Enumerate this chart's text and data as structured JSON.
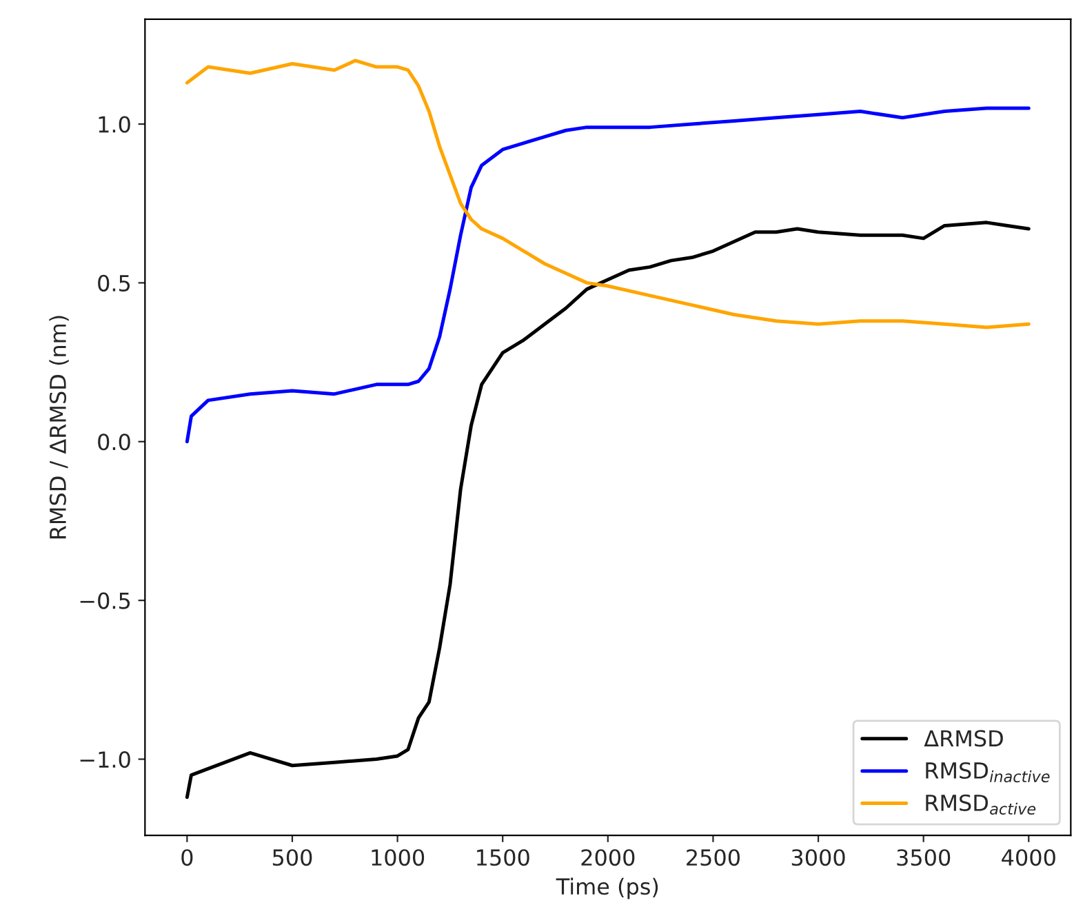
{
  "chart_data": {
    "type": "line",
    "xlabel": "Time (ps)",
    "ylabel": "RMSD / ΔRMSD (nm)",
    "xlim": [
      -200,
      4200
    ],
    "ylim": [
      -1.24,
      1.33
    ],
    "xticks": [
      0,
      500,
      1000,
      1500,
      2000,
      2500,
      3000,
      3500,
      4000
    ],
    "yticks": [
      {
        "value": -1.0,
        "label": "−1.0"
      },
      {
        "value": -0.5,
        "label": "−0.5"
      },
      {
        "value": 0.0,
        "label": "0.0"
      },
      {
        "value": 0.5,
        "label": "0.5"
      },
      {
        "value": 1.0,
        "label": "1.0"
      }
    ],
    "grid": false,
    "legend": "bottom right",
    "line_style": "solid",
    "marker": "none",
    "series": [
      {
        "name": "ΔRMSD",
        "color": "#000000",
        "x": [
          0,
          20,
          100,
          300,
          500,
          700,
          900,
          1000,
          1050,
          1100,
          1150,
          1200,
          1250,
          1300,
          1350,
          1400,
          1500,
          1600,
          1700,
          1800,
          1900,
          2000,
          2100,
          2200,
          2300,
          2400,
          2500,
          2600,
          2700,
          2800,
          2900,
          3000,
          3200,
          3400,
          3500,
          3600,
          3800,
          3900,
          4000
        ],
        "values": [
          -1.12,
          -1.05,
          -1.03,
          -0.98,
          -1.02,
          -1.01,
          -1.0,
          -0.99,
          -0.97,
          -0.87,
          -0.82,
          -0.65,
          -0.45,
          -0.15,
          0.05,
          0.18,
          0.28,
          0.32,
          0.37,
          0.42,
          0.48,
          0.51,
          0.54,
          0.55,
          0.57,
          0.58,
          0.6,
          0.63,
          0.66,
          0.66,
          0.67,
          0.66,
          0.65,
          0.65,
          0.64,
          0.68,
          0.69,
          0.68,
          0.67
        ]
      },
      {
        "name": "RMSD$_{inactive}$",
        "color": "#0000ff",
        "x": [
          0,
          20,
          100,
          300,
          500,
          700,
          900,
          1000,
          1050,
          1100,
          1150,
          1200,
          1250,
          1300,
          1350,
          1400,
          1500,
          1600,
          1700,
          1800,
          1900,
          2000,
          2200,
          2400,
          2600,
          2800,
          3000,
          3200,
          3400,
          3600,
          3800,
          4000
        ],
        "values": [
          0.0,
          0.08,
          0.13,
          0.15,
          0.16,
          0.15,
          0.18,
          0.18,
          0.18,
          0.19,
          0.23,
          0.33,
          0.48,
          0.65,
          0.8,
          0.87,
          0.92,
          0.94,
          0.96,
          0.98,
          0.99,
          0.99,
          0.99,
          1.0,
          1.01,
          1.02,
          1.03,
          1.04,
          1.02,
          1.04,
          1.05,
          1.05
        ]
      },
      {
        "name": "RMSD$_{active}$",
        "color": "#ffa500",
        "x": [
          0,
          20,
          100,
          300,
          500,
          700,
          800,
          900,
          1000,
          1050,
          1100,
          1150,
          1200,
          1250,
          1300,
          1350,
          1400,
          1500,
          1600,
          1700,
          1800,
          1900,
          2000,
          2200,
          2400,
          2600,
          2800,
          3000,
          3200,
          3400,
          3600,
          3800,
          4000
        ],
        "values": [
          1.13,
          1.14,
          1.18,
          1.16,
          1.19,
          1.17,
          1.2,
          1.18,
          1.18,
          1.17,
          1.12,
          1.04,
          0.93,
          0.84,
          0.75,
          0.7,
          0.67,
          0.64,
          0.6,
          0.56,
          0.53,
          0.5,
          0.49,
          0.46,
          0.43,
          0.4,
          0.38,
          0.37,
          0.38,
          0.38,
          0.37,
          0.36,
          0.37
        ]
      }
    ]
  }
}
